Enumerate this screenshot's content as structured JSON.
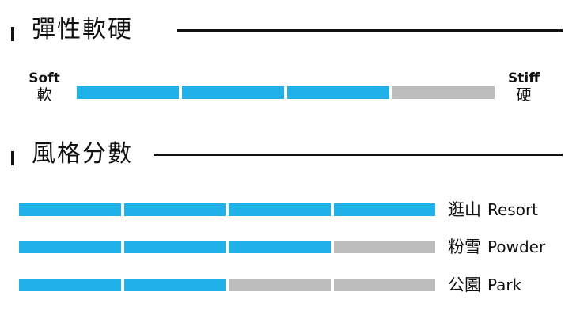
{
  "colors": {
    "active": "#1fb1e8",
    "inactive": "#bdbdbd",
    "text": "#111111"
  },
  "flex_section": {
    "title": "彈性軟硬",
    "soft_en": "Soft",
    "soft_zh": "軟",
    "stiff_en": "Stiff",
    "stiff_zh": "硬",
    "segments_total": 4,
    "segments_filled": 3
  },
  "rating_section": {
    "title": "風格分數",
    "rows": [
      {
        "zh": "逛山",
        "en": "Resort",
        "segments_total": 4,
        "segments_filled": 4
      },
      {
        "zh": "粉雪",
        "en": "Powder",
        "segments_total": 4,
        "segments_filled": 3
      },
      {
        "zh": "公園",
        "en": "Park",
        "segments_total": 4,
        "segments_filled": 2
      }
    ]
  }
}
